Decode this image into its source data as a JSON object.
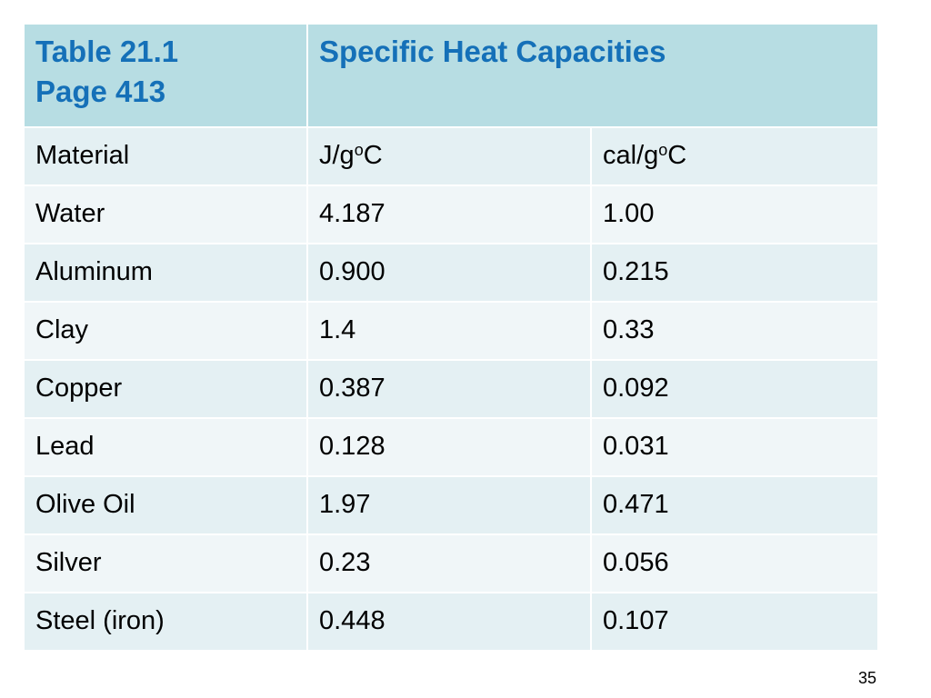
{
  "header": {
    "table_ref_line1": "Table 21.1",
    "table_ref_line2": "Page 413",
    "title": "Specific Heat Capacities"
  },
  "columns": {
    "material": "Material",
    "joule_unit_pre": "J/g",
    "joule_unit_sup": "o",
    "joule_unit_post": "C",
    "cal_unit_pre": "cal/g",
    "cal_unit_sup": "o",
    "cal_unit_post": "C"
  },
  "rows": [
    {
      "material": "Water",
      "j_per_g_c": "4.187",
      "cal_per_g_c": "1.00"
    },
    {
      "material": "Aluminum",
      "j_per_g_c": "0.900",
      "cal_per_g_c": "0.215"
    },
    {
      "material": "Clay",
      "j_per_g_c": "1.4",
      "cal_per_g_c": "0.33"
    },
    {
      "material": "Copper",
      "j_per_g_c": "0.387",
      "cal_per_g_c": "0.092"
    },
    {
      "material": "Lead",
      "j_per_g_c": "0.128",
      "cal_per_g_c": "0.031"
    },
    {
      "material": "Olive Oil",
      "j_per_g_c": "1.97",
      "cal_per_g_c": "0.471"
    },
    {
      "material": "Silver",
      "j_per_g_c": "0.23",
      "cal_per_g_c": "0.056"
    },
    {
      "material": "Steel (iron)",
      "j_per_g_c": "0.448",
      "cal_per_g_c": "0.107"
    }
  ],
  "slide_number": "35",
  "colors": {
    "header_bg": "#b7dde3",
    "header_text": "#1570b8",
    "row_shade_a": "#e4f0f3",
    "row_shade_b": "#f0f6f8"
  }
}
